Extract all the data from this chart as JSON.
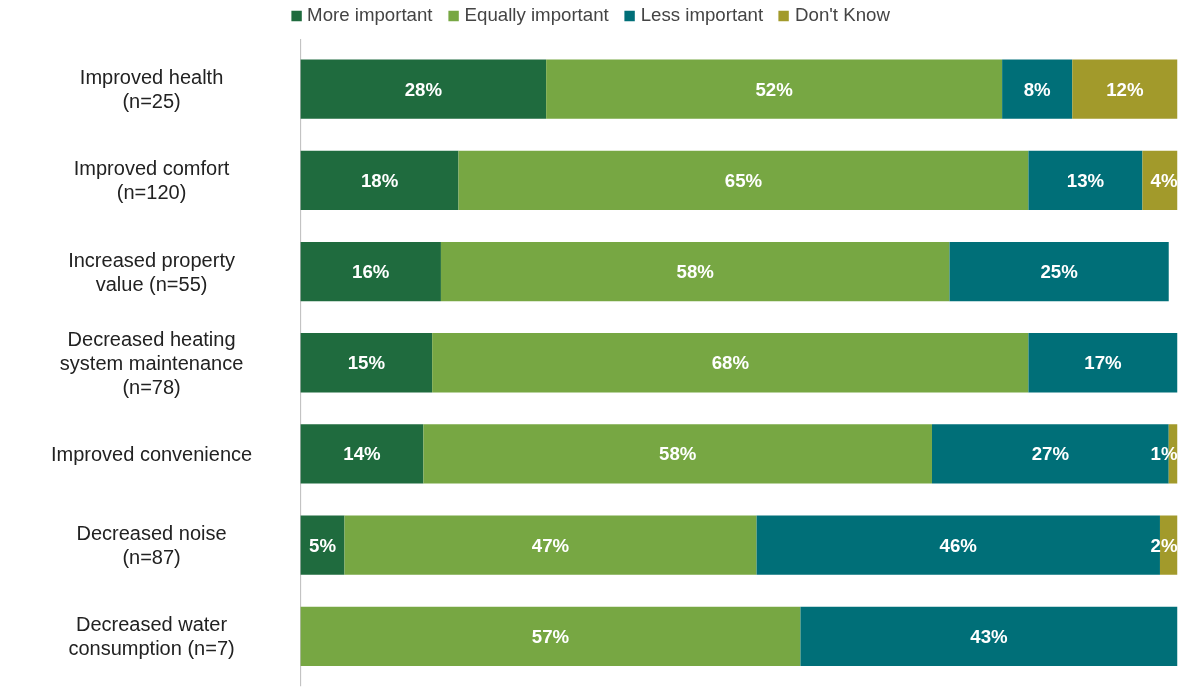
{
  "chart_data": {
    "type": "bar",
    "orientation": "horizontal",
    "stacked": true,
    "legend": "top",
    "grid": false,
    "tick_labels": "y",
    "categories": [
      "Improved health (n=25)",
      "Improved comfort (n=120)",
      "Increased property value (n=55)",
      "Decreased heating system maintenance (n=78)",
      "Improved convenience",
      "Decreased noise (n=87)",
      "Decreased water consumption (n=7)"
    ],
    "series": [
      {
        "name": "More important",
        "color": "#1f6b3e",
        "values": [
          28,
          18,
          16,
          15,
          14,
          5,
          null
        ],
        "value_labels": [
          "28%",
          "18%",
          "16%",
          "15%",
          "14%",
          "5%",
          null
        ]
      },
      {
        "name": "Equally important",
        "color": "#77a743",
        "values": [
          52,
          65,
          58,
          68,
          58,
          47,
          57
        ],
        "value_labels": [
          "52%",
          "65%",
          "58%",
          "68%",
          "58%",
          "47%",
          "57%"
        ]
      },
      {
        "name": "Less important",
        "color": "#006f78",
        "values": [
          8,
          13,
          25,
          17,
          27,
          46,
          43
        ],
        "value_labels": [
          "8%",
          "13%",
          "25%",
          "17%",
          "27%",
          "46%",
          "43%"
        ]
      },
      {
        "name": "Don't Know",
        "color": "#a29a2b",
        "values": [
          12,
          4,
          null,
          null,
          1,
          2,
          null
        ],
        "value_labels": [
          "12%",
          "4%",
          null,
          null,
          "1%",
          "2%",
          null
        ]
      }
    ]
  }
}
